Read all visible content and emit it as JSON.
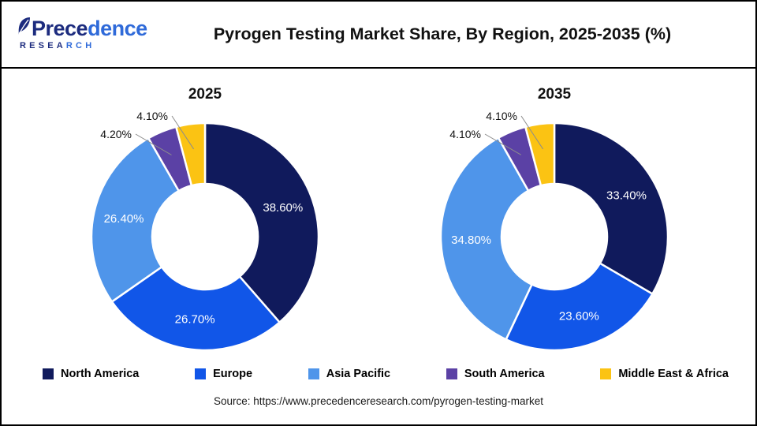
{
  "header": {
    "logo": {
      "name": "Precedence",
      "subtitle": "RESEARCH"
    },
    "title": "Pyrogen Testing Market Share, By Region, 2025-2035 (%)"
  },
  "chart_data": [
    {
      "type": "pie",
      "subtype": "donut",
      "title": "2025",
      "categories": [
        "North America",
        "Europe",
        "Asia Pacific",
        "South America",
        "Middle East & Africa"
      ],
      "values": [
        38.6,
        26.7,
        26.4,
        4.2,
        4.1
      ],
      "labels": [
        "38.60%",
        "26.70%",
        "26.40%",
        "4.20%",
        "4.10%"
      ],
      "colors": [
        "#101A5C",
        "#1156E8",
        "#4F95EA",
        "#5B41A5",
        "#FBC313"
      ],
      "unit": "%",
      "start_angle": "top",
      "direction": "clockwise",
      "legend_position": "bottom"
    },
    {
      "type": "pie",
      "subtype": "donut",
      "title": "2035",
      "categories": [
        "North America",
        "Europe",
        "Asia Pacific",
        "South America",
        "Middle East & Africa"
      ],
      "values": [
        33.4,
        23.6,
        34.8,
        4.1,
        4.1
      ],
      "labels": [
        "33.40%",
        "23.60%",
        "34.80%",
        "4.10%",
        "4.10%"
      ],
      "colors": [
        "#101A5C",
        "#1156E8",
        "#4F95EA",
        "#5B41A5",
        "#FBC313"
      ],
      "unit": "%",
      "start_angle": "top",
      "direction": "clockwise",
      "legend_position": "bottom"
    }
  ],
  "legend": {
    "items": [
      {
        "label": "North America",
        "color": "#101A5C"
      },
      {
        "label": "Europe",
        "color": "#1156E8"
      },
      {
        "label": "Asia Pacific",
        "color": "#4F95EA"
      },
      {
        "label": "South America",
        "color": "#5B41A5"
      },
      {
        "label": "Middle East & Africa",
        "color": "#FBC313"
      }
    ]
  },
  "source": "Source: https://www.precedenceresearch.com/pyrogen-testing-market"
}
